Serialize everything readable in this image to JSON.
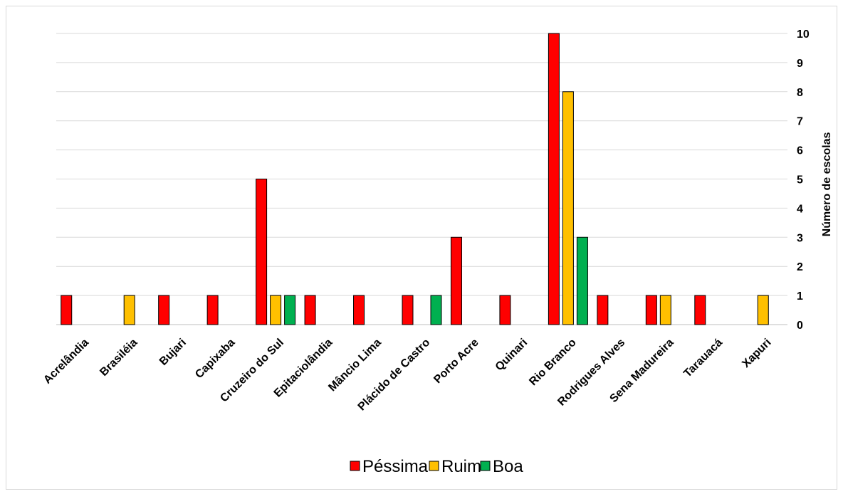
{
  "chart_data": {
    "type": "bar",
    "categories": [
      "Acrelândia",
      "Brasiléia",
      "Bujari",
      "Capixaba",
      "Cruzeiro do Sul",
      "Epitaciolândia",
      "Mâncio Lima",
      "Plácido de Castro",
      "Porto Acre",
      "Quinari",
      "Rio Branco",
      "Rodrigues Alves",
      "Sena Madureira",
      "Tarauacá",
      "Xapuri"
    ],
    "series": [
      {
        "name": "Péssima",
        "color": "#ff0000",
        "values": [
          1,
          0,
          1,
          1,
          5,
          1,
          1,
          1,
          3,
          1,
          10,
          1,
          1,
          1,
          0
        ]
      },
      {
        "name": "Ruim",
        "color": "#ffc000",
        "values": [
          0,
          1,
          0,
          0,
          1,
          0,
          0,
          0,
          0,
          0,
          8,
          0,
          1,
          0,
          1
        ]
      },
      {
        "name": "Boa",
        "color": "#00b050",
        "values": [
          0,
          0,
          0,
          0,
          1,
          0,
          0,
          1,
          0,
          0,
          3,
          0,
          0,
          0,
          0
        ]
      }
    ],
    "ylabel": "Número de escolas",
    "ylim": [
      0,
      10
    ],
    "yticks": [
      "0",
      "1",
      "2",
      "3",
      "4",
      "5",
      "6",
      "7",
      "8",
      "9",
      "10"
    ],
    "y_axis_position": "right",
    "grid": true,
    "legend_position": "bottom"
  }
}
